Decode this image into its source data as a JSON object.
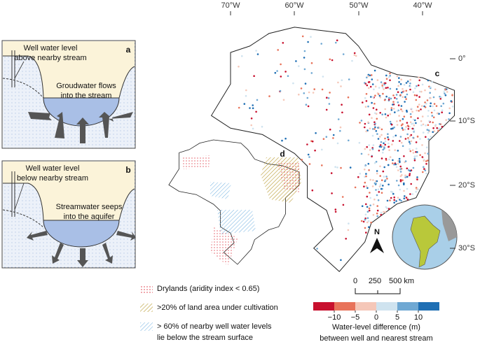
{
  "panel_a": {
    "label": "a",
    "well_text": [
      "Well water level",
      "above nearby stream"
    ],
    "flow_text": [
      "Groudwater flows",
      "into the stream"
    ]
  },
  "panel_b": {
    "label": "b",
    "well_text": [
      "Well water level",
      "below nearby stream"
    ],
    "flow_text": [
      "Streamwater seeps",
      "into the aquifer"
    ]
  },
  "map": {
    "longitude_labels": [
      "70°W",
      "60°W",
      "50°W",
      "40°W"
    ],
    "latitude_labels": [
      "0°",
      "10°S",
      "20°S",
      "30°S"
    ],
    "panel_c": "c",
    "panel_d": "d",
    "north": "N",
    "scale_labels": [
      "0",
      "250",
      "500 km"
    ]
  },
  "legend": {
    "drylands": "Drylands (aridity index < 0.65)",
    "cultivation": ">20% of land area under cultivation",
    "below_stream": [
      "> 60% of nearby well water levels",
      "lie below the stream surface"
    ]
  },
  "colorbar": {
    "ticks": [
      {
        "value": -10,
        "label": "−10"
      },
      {
        "value": -5,
        "label": "−5"
      },
      0,
      5,
      10
    ],
    "colors": [
      "#c8102e",
      "#e8735a",
      "#f5c7b8",
      "#cfe3ef",
      "#6fa8d3",
      "#1f6fb4"
    ],
    "title": [
      "Water-level difference (m)",
      "between well and nearest stream"
    ]
  }
}
